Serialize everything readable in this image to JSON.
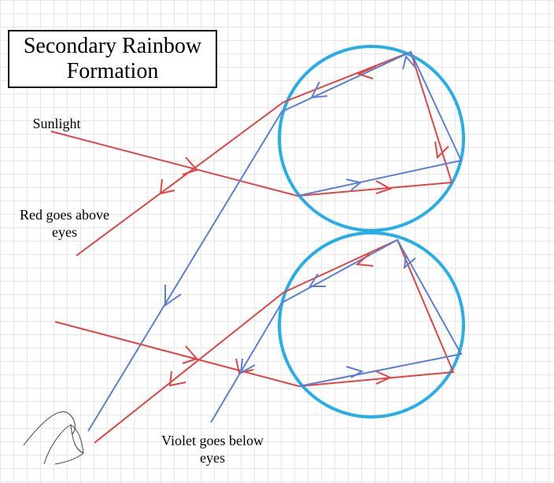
{
  "title": "Secondary Rainbow Formation",
  "labels": {
    "sunlight": "Sunlight",
    "red": "Red goes above eyes",
    "violet": "Violet goes below eyes"
  }
}
